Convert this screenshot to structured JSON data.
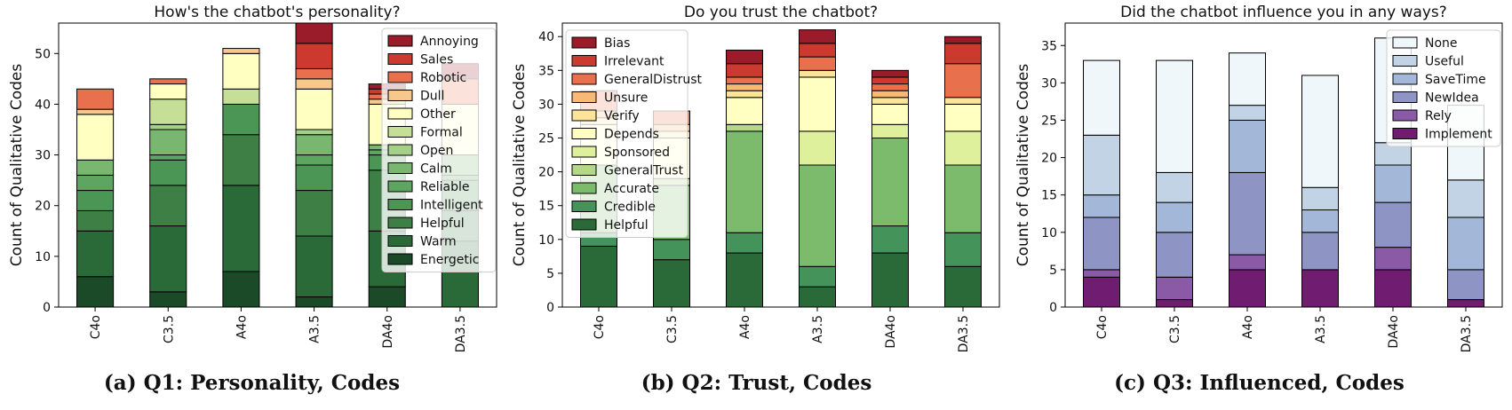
{
  "chart_data": [
    {
      "type": "bar",
      "stacked": true,
      "title": "How's the chatbot's personality?",
      "ylabel": "Count of Qualitative Codes",
      "xlabel": "",
      "categories": [
        "C4o",
        "C3.5",
        "A4o",
        "A3.5",
        "DA4o",
        "DA3.5"
      ],
      "ylim": [
        0,
        56
      ],
      "yticks": [
        0,
        10,
        20,
        30,
        40,
        50
      ],
      "grid": false,
      "legend_position": "top-right",
      "caption": "(a) Q1: Personality, Codes",
      "series": [
        {
          "name": "Energetic",
          "color": "#1a4a27",
          "values": [
            6,
            3,
            7,
            2,
            4,
            0
          ]
        },
        {
          "name": "Warm",
          "color": "#2a6a38",
          "values": [
            9,
            13,
            17,
            12,
            11,
            13
          ]
        },
        {
          "name": "Helpful",
          "color": "#3e7f46",
          "values": [
            4,
            8,
            10,
            9,
            12,
            6
          ]
        },
        {
          "name": "Intelligent",
          "color": "#4b9555",
          "values": [
            4,
            5,
            6,
            5,
            3,
            6
          ]
        },
        {
          "name": "Reliable",
          "color": "#5ea562",
          "values": [
            3,
            1,
            0,
            2,
            1,
            1
          ]
        },
        {
          "name": "Calm",
          "color": "#79b66f",
          "values": [
            3,
            5,
            0,
            4,
            1,
            4
          ]
        },
        {
          "name": "Open",
          "color": "#a5d08a",
          "values": [
            0,
            1,
            0,
            1,
            0,
            0
          ]
        },
        {
          "name": "Formal",
          "color": "#c5df97",
          "values": [
            0,
            5,
            3,
            0,
            0,
            0
          ]
        },
        {
          "name": "Other",
          "color": "#ffffc2",
          "values": [
            9,
            3,
            7,
            8,
            8,
            10
          ]
        },
        {
          "name": "Dull",
          "color": "#f6c88e",
          "values": [
            1,
            0,
            1,
            2,
            1,
            0
          ]
        },
        {
          "name": "Robotic",
          "color": "#e8704d",
          "values": [
            4,
            1,
            0,
            2,
            1,
            5
          ]
        },
        {
          "name": "Sales",
          "color": "#cc3a2f",
          "values": [
            0,
            0,
            0,
            5,
            1,
            0
          ]
        },
        {
          "name": "Annoying",
          "color": "#9a1c2a",
          "values": [
            0,
            0,
            0,
            4,
            1,
            3
          ]
        }
      ]
    },
    {
      "type": "bar",
      "stacked": true,
      "title": "Do you trust the chatbot?",
      "ylabel": "Count of Qualitative Codes",
      "xlabel": "",
      "categories": [
        "C4o",
        "C3.5",
        "A4o",
        "A3.5",
        "DA4o",
        "DA3.5"
      ],
      "ylim": [
        0,
        42
      ],
      "yticks": [
        0,
        5,
        10,
        15,
        20,
        25,
        30,
        35,
        40
      ],
      "grid": false,
      "legend_position": "top-left",
      "caption": "(b) Q2: Trust, Codes",
      "series": [
        {
          "name": "Helpful",
          "color": "#2a6a38",
          "values": [
            9,
            7,
            8,
            3,
            8,
            6
          ]
        },
        {
          "name": "Credible",
          "color": "#43935a",
          "values": [
            2,
            3,
            3,
            3,
            4,
            5
          ]
        },
        {
          "name": "Accurate",
          "color": "#7dbb6c",
          "values": [
            10,
            8,
            15,
            15,
            13,
            10
          ]
        },
        {
          "name": "GeneralTrust",
          "color": "#b5d888",
          "values": [
            0,
            1,
            1,
            0,
            0,
            0
          ]
        },
        {
          "name": "Sponsored",
          "color": "#def09c",
          "values": [
            0,
            0,
            0,
            5,
            2,
            5
          ]
        },
        {
          "name": "Depends",
          "color": "#ffffc2",
          "values": [
            6,
            6,
            4,
            8,
            3,
            4
          ]
        },
        {
          "name": "Verify",
          "color": "#fbe39a",
          "values": [
            1,
            1,
            1,
            1,
            1,
            1
          ]
        },
        {
          "name": "Unsure",
          "color": "#f8b978",
          "values": [
            1,
            1,
            1,
            0,
            1,
            0
          ]
        },
        {
          "name": "GeneralDistrust",
          "color": "#e8704d",
          "values": [
            3,
            2,
            1,
            2,
            1,
            5
          ]
        },
        {
          "name": "Irrelevant",
          "color": "#cc3a2f",
          "values": [
            0,
            0,
            2,
            2,
            1,
            3
          ]
        },
        {
          "name": "Bias",
          "color": "#9a1c2a",
          "values": [
            0,
            0,
            2,
            2,
            1,
            1
          ]
        }
      ]
    },
    {
      "type": "bar",
      "stacked": true,
      "title": "Did the chatbot influence you in any ways?",
      "ylabel": "Count of Qualitative Codes",
      "xlabel": "",
      "categories": [
        "C4o",
        "C3.5",
        "A4o",
        "A3.5",
        "DA4o",
        "DA3.5"
      ],
      "ylim": [
        0,
        38
      ],
      "yticks": [
        0,
        5,
        10,
        15,
        20,
        25,
        30,
        35
      ],
      "grid": false,
      "legend_position": "top-right",
      "caption": "(c) Q3: Influenced, Codes",
      "series": [
        {
          "name": "Implement",
          "color": "#701c70",
          "values": [
            4,
            1,
            5,
            5,
            5,
            1
          ]
        },
        {
          "name": "Rely",
          "color": "#8b5aa6",
          "values": [
            1,
            3,
            2,
            0,
            3,
            0
          ]
        },
        {
          "name": "NewIdea",
          "color": "#8e94c3",
          "values": [
            7,
            6,
            11,
            5,
            6,
            4
          ]
        },
        {
          "name": "SaveTime",
          "color": "#a3b8d9",
          "values": [
            3,
            4,
            7,
            3,
            5,
            7
          ]
        },
        {
          "name": "Useful",
          "color": "#c2d3e6",
          "values": [
            8,
            4,
            2,
            3,
            3,
            5
          ]
        },
        {
          "name": "None",
          "color": "#f0f7fb",
          "values": [
            10,
            15,
            7,
            15,
            14,
            10
          ]
        }
      ]
    }
  ]
}
